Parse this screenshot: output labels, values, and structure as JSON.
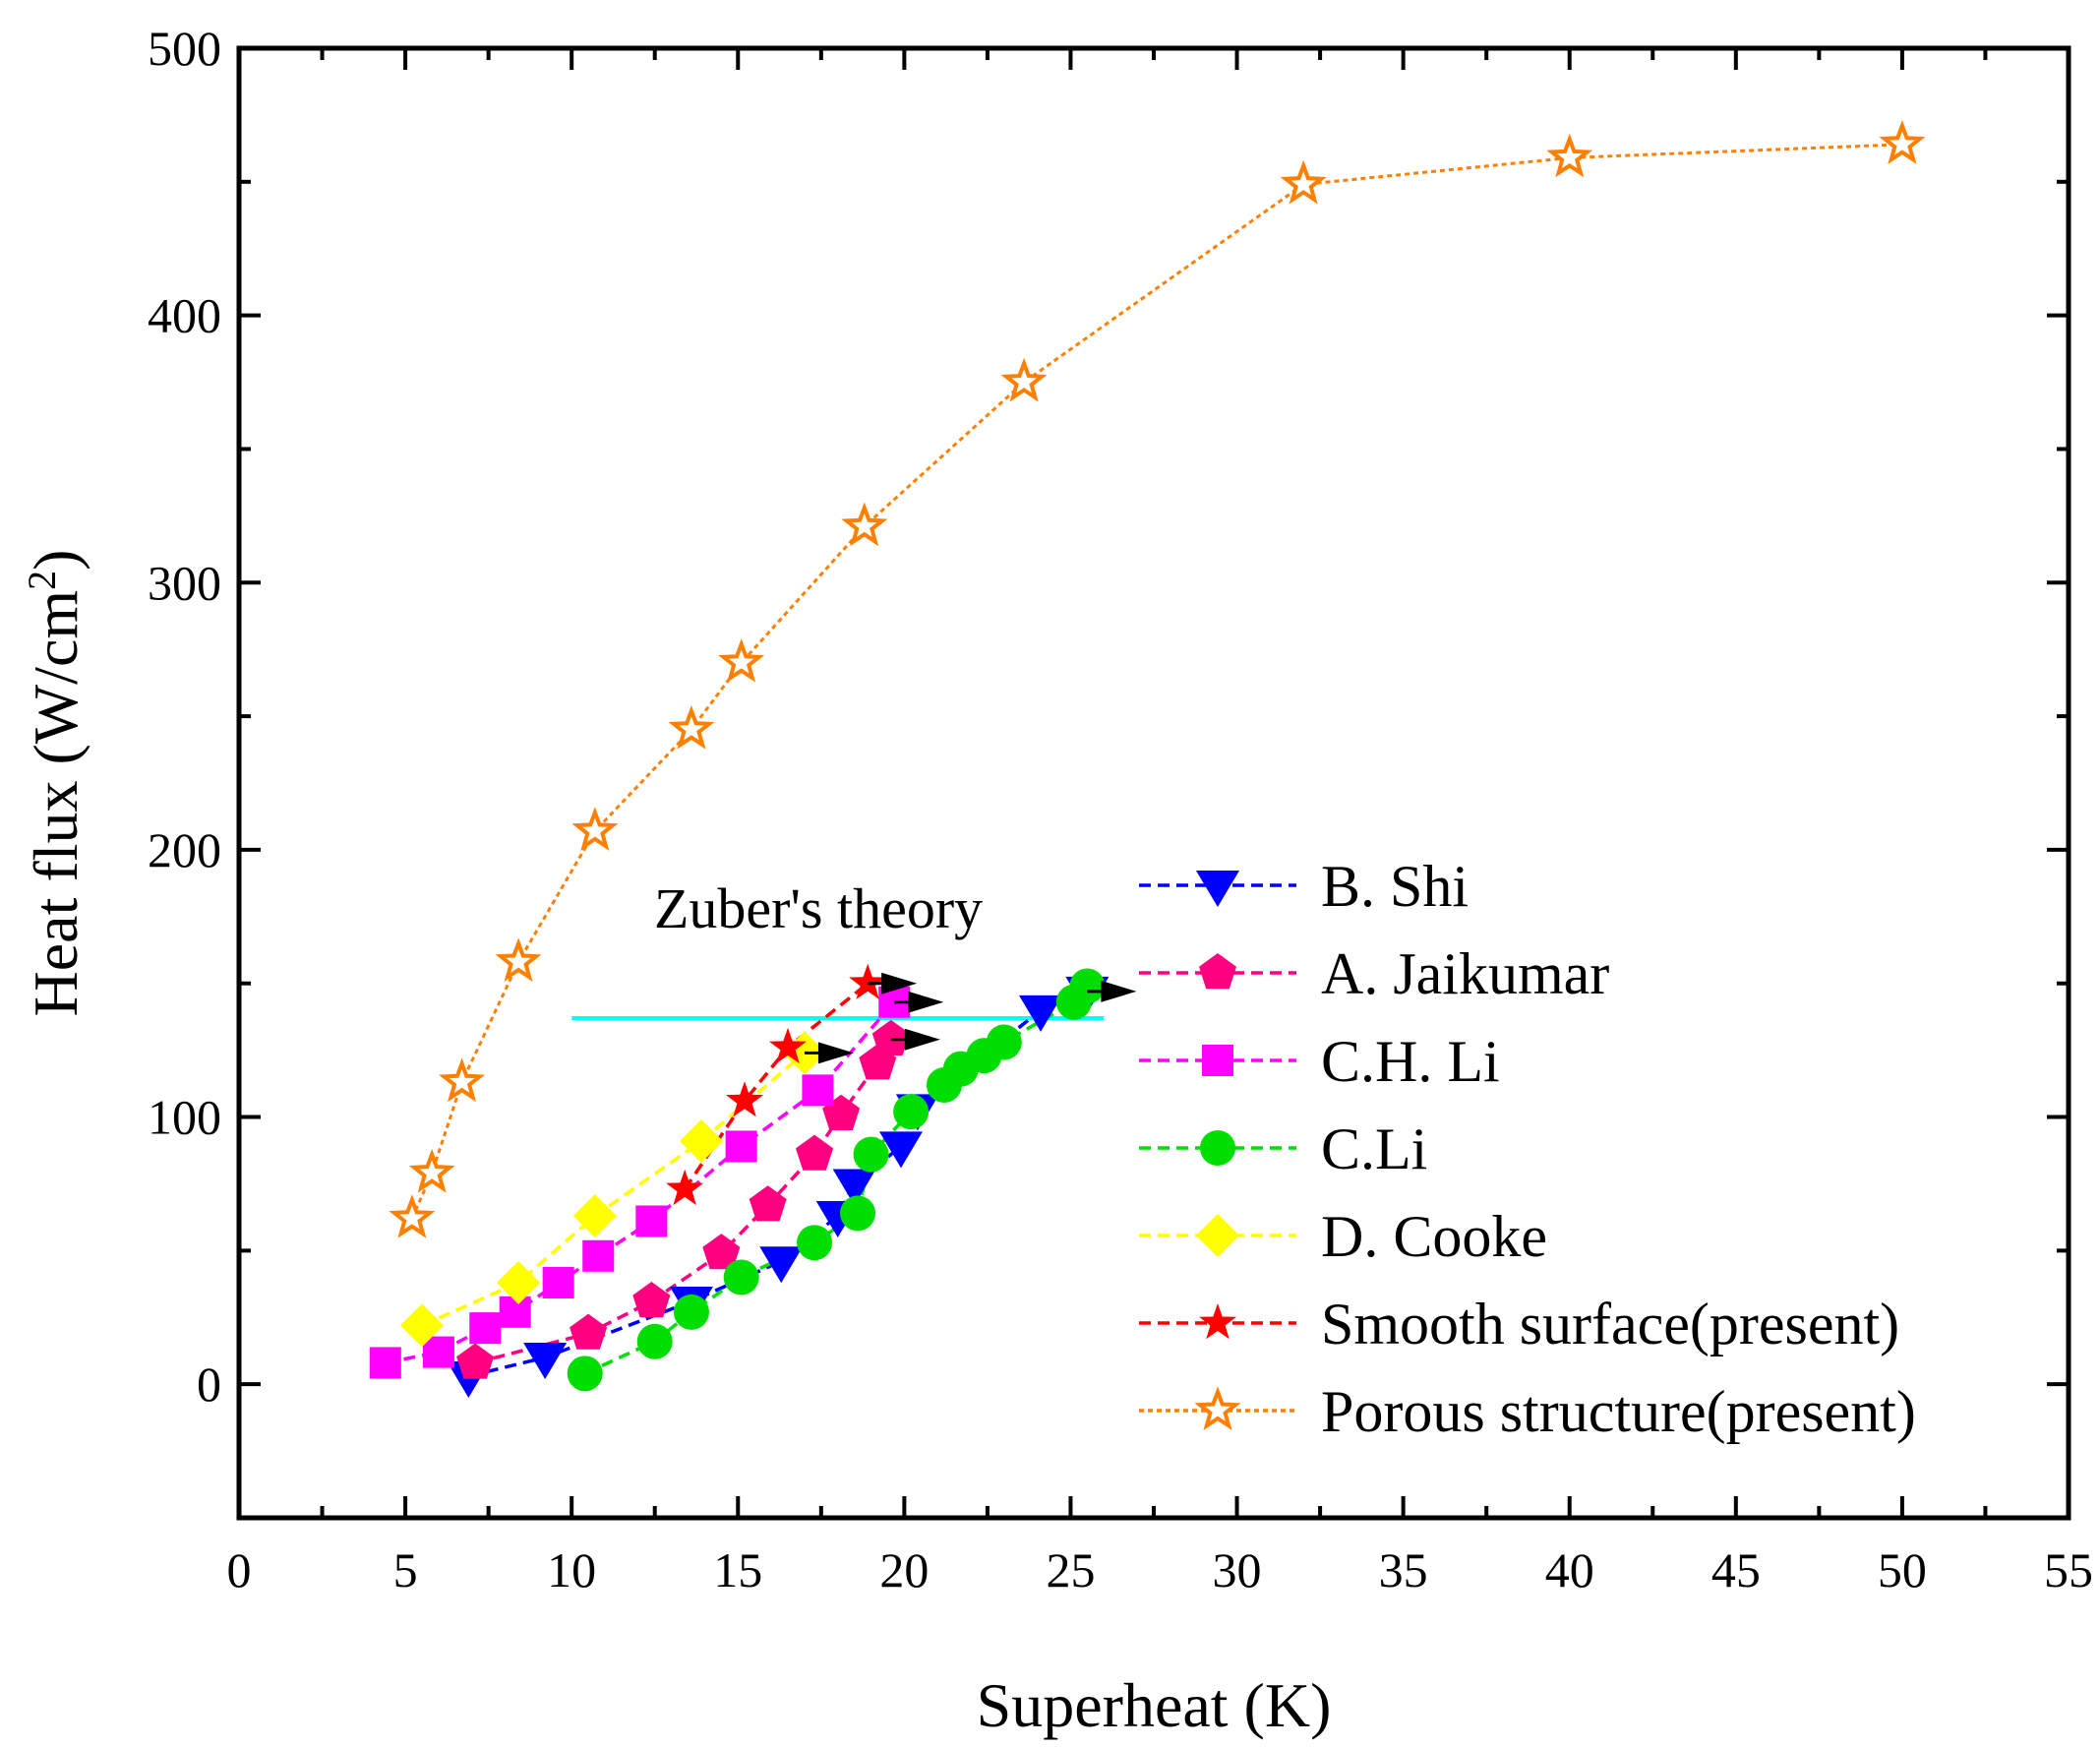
{
  "chart_data": {
    "type": "scatter",
    "title": "",
    "xlabel": "Superheat (K)",
    "ylabel_main": "Heat flux (W/cm",
    "ylabel_sup": "2",
    "ylabel_close": ")",
    "xlim": [
      0,
      55
    ],
    "ylim": [
      -50,
      500
    ],
    "xticks": [
      0,
      5,
      10,
      15,
      20,
      25,
      30,
      35,
      40,
      45,
      50,
      55
    ],
    "yticks": [
      0,
      100,
      200,
      300,
      400,
      500
    ],
    "legend_position": "lower-right",
    "grid": false,
    "series": [
      {
        "name": "B. Shi",
        "color": "#0000ff",
        "marker": "triangle-down",
        "line": "dashed",
        "x": [
          6.9,
          9.2,
          13.6,
          16.3,
          18.0,
          18.5,
          19.9,
          20.4,
          24.1,
          25.5
        ],
        "y": [
          3,
          10,
          31,
          46,
          63,
          75,
          89,
          103,
          140,
          147
        ]
      },
      {
        "name": "A. Jaikumar",
        "color": "#ff0080",
        "marker": "pentagon",
        "line": "dashed",
        "x": [
          7.1,
          10.5,
          12.4,
          14.5,
          15.9,
          17.3,
          18.1,
          19.2,
          19.6
        ],
        "y": [
          8,
          19,
          31,
          49,
          67,
          86,
          101,
          120,
          129
        ]
      },
      {
        "name": "C.H. Li",
        "color": "#ff00ff",
        "marker": "square",
        "line": "dashed",
        "x": [
          4.4,
          6.0,
          7.4,
          8.3,
          9.6,
          10.8,
          12.4,
          15.1,
          17.4,
          19.7
        ],
        "y": [
          8,
          12,
          21,
          27,
          38,
          48,
          61,
          89,
          110,
          143
        ]
      },
      {
        "name": "C.Li",
        "color": "#00dd00",
        "marker": "circle",
        "line": "dashed",
        "x": [
          10.4,
          12.5,
          13.6,
          15.1,
          17.3,
          18.6,
          19.0,
          20.2,
          21.2,
          21.7,
          22.4,
          23.0,
          25.1,
          25.5
        ],
        "y": [
          4,
          16,
          27,
          40,
          53,
          64,
          86,
          102,
          112,
          118,
          123,
          128,
          143,
          149
        ]
      },
      {
        "name": "D. Cooke",
        "color": "#ffff00",
        "marker": "diamond",
        "line": "dashed",
        "x": [
          5.5,
          8.4,
          10.7,
          13.9,
          17.0
        ],
        "y": [
          22,
          38,
          63,
          91,
          124
        ]
      },
      {
        "name": "Smooth surface(present)",
        "color": "#ff0000",
        "marker": "star-filled",
        "line": "dashed",
        "x": [
          13.4,
          15.2,
          16.5,
          18.9
        ],
        "y": [
          73,
          106,
          126,
          150
        ]
      },
      {
        "name": "Porous structure(present)",
        "color": "#ff8000",
        "marker": "star-open",
        "line": "dotted",
        "x": [
          5.2,
          5.8,
          6.7,
          8.4,
          10.7,
          13.6,
          15.1,
          18.8,
          23.6,
          32.0,
          40.0,
          50.0
        ],
        "y": [
          62,
          79,
          113,
          158,
          207,
          245,
          270,
          321,
          375,
          449,
          459,
          464
        ]
      }
    ],
    "reference_line": {
      "label": "Zuber's theory",
      "color": "#00ffff",
      "y": 137,
      "x_start": 10,
      "x_end": 26
    },
    "arrows": [
      {
        "x": 18.9,
        "y": 150
      },
      {
        "x": 19.7,
        "y": 143
      },
      {
        "x": 19.6,
        "y": 129
      },
      {
        "x": 17.0,
        "y": 124
      },
      {
        "x": 25.5,
        "y": 147
      }
    ]
  }
}
